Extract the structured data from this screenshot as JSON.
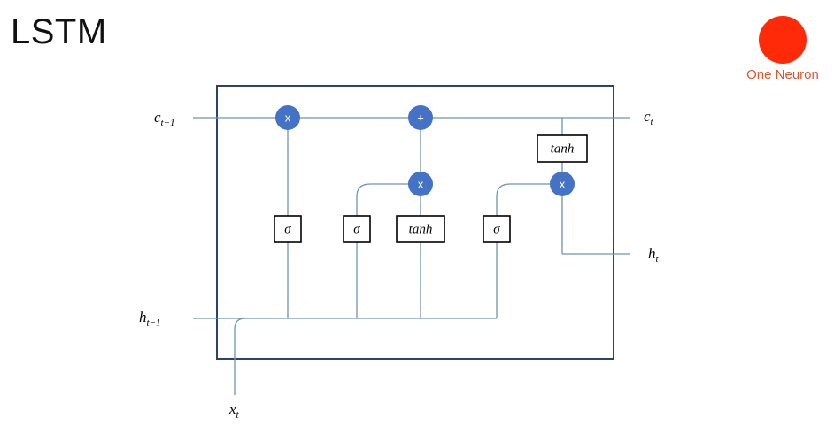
{
  "title": "LSTM",
  "logo": {
    "text": "One Neuron",
    "color": "#ff2a08"
  },
  "diagram": {
    "nodes": {
      "forget_mult": "x",
      "cell_add": "+",
      "input_mult": "x",
      "output_mult": "x"
    },
    "boxes": {
      "forget_gate": "σ",
      "input_gate": "σ",
      "candidate": "tanh",
      "output_gate": "σ",
      "cell_tanh": "tanh"
    },
    "labels": {
      "c_prev": {
        "base": "c",
        "sub": "t−1"
      },
      "c_next": {
        "base": "c",
        "sub": "t"
      },
      "h_prev": {
        "base": "h",
        "sub": "t−1"
      },
      "h_next": {
        "base": "h",
        "sub": "t"
      },
      "x_in": {
        "base": "x",
        "sub": "t"
      }
    },
    "colors": {
      "node": "#4472c4",
      "wire": "#6e93b5",
      "frame": "#2e4466"
    }
  }
}
